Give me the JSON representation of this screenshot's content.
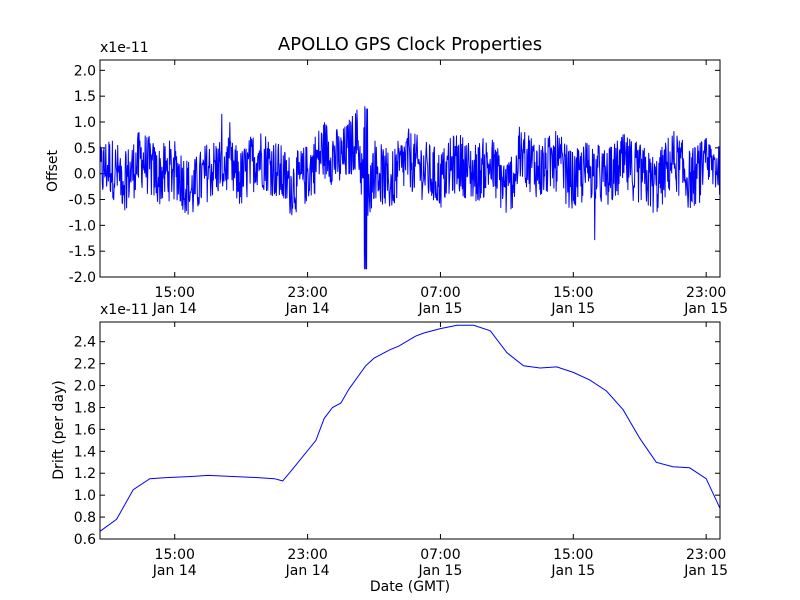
{
  "figure": {
    "title": "APOLLO GPS Clock Properties"
  },
  "colors": {
    "line": "#0000ff",
    "axes": "#000000",
    "background": "#ffffff"
  },
  "chart_data": [
    {
      "type": "line",
      "title": "APOLLO GPS Clock Properties",
      "ylabel": "Offset",
      "xlabel": "",
      "scale_label": "x1e-11",
      "ylim": [
        -2.0,
        2.2
      ],
      "xlim": [
        "Jan 14 10:30",
        "Jan 15 23:50"
      ],
      "grid": false,
      "yticks": [
        {
          "value": -2.0,
          "label": "-2.0"
        },
        {
          "value": -1.5,
          "label": "-1.5"
        },
        {
          "value": -1.0,
          "label": "-1.0"
        },
        {
          "value": -0.5,
          "label": "-0.5"
        },
        {
          "value": 0.0,
          "label": "0.0"
        },
        {
          "value": 0.5,
          "label": "0.5"
        },
        {
          "value": 1.0,
          "label": "1.0"
        },
        {
          "value": 1.5,
          "label": "1.5"
        },
        {
          "value": 2.0,
          "label": "2.0"
        }
      ],
      "xticks": [
        {
          "value": "Jan 14 15:00",
          "time": "15:00",
          "date": "Jan 14"
        },
        {
          "value": "Jan 14 23:00",
          "time": "23:00",
          "date": "Jan 14"
        },
        {
          "value": "Jan 15 07:00",
          "time": "07:00",
          "date": "Jan 15"
        },
        {
          "value": "Jan 15 15:00",
          "time": "15:00",
          "date": "Jan 15"
        },
        {
          "value": "Jan 15 23:00",
          "time": "23:00",
          "date": "Jan 15"
        }
      ],
      "series": [
        {
          "color": "#0000ff",
          "x": [
            "Jan 14 10:30",
            "Jan 14 11:00",
            "Jan 14 12:00",
            "Jan 14 13:00",
            "Jan 14 14:00",
            "Jan 14 15:00",
            "Jan 14 16:00",
            "Jan 14 17:00",
            "Jan 14 18:00",
            "Jan 14 19:00",
            "Jan 14 20:00",
            "Jan 14 21:00",
            "Jan 14 22:00",
            "Jan 14 23:00",
            "Jan 15 00:00",
            "Jan 15 01:00",
            "Jan 15 02:00",
            "Jan 15 02:30",
            "Jan 15 03:00",
            "Jan 15 04:00",
            "Jan 15 05:00",
            "Jan 15 06:00",
            "Jan 15 07:00",
            "Jan 15 08:00",
            "Jan 15 09:00",
            "Jan 15 10:00",
            "Jan 15 11:00",
            "Jan 15 12:00",
            "Jan 15 13:00",
            "Jan 15 14:00",
            "Jan 15 15:00",
            "Jan 15 16:00",
            "Jan 15 17:00",
            "Jan 15 18:00",
            "Jan 15 19:00",
            "Jan 15 20:00",
            "Jan 15 21:00",
            "Jan 15 22:00",
            "Jan 15 23:00",
            "Jan 15 23:50"
          ],
          "values": [
            0.0,
            0.3,
            -0.2,
            0.5,
            -0.1,
            0.2,
            -0.6,
            0.1,
            0.3,
            -0.2,
            0.6,
            0.2,
            -0.4,
            0.0,
            0.8,
            0.4,
            1.2,
            -1.0,
            0.2,
            -0.3,
            0.5,
            0.1,
            -0.2,
            0.4,
            0.0,
            0.3,
            -0.5,
            0.6,
            0.1,
            0.4,
            -0.3,
            0.2,
            -0.2,
            0.3,
            0.0,
            -0.4,
            0.5,
            -0.2,
            0.2,
            0.3
          ]
        }
      ]
    },
    {
      "type": "line",
      "title": "",
      "ylabel": "Drift (per day)",
      "xlabel": "Date (GMT)",
      "scale_label": "x1e-11",
      "ylim": [
        0.6,
        2.58
      ],
      "xlim": [
        "Jan 14 10:30",
        "Jan 15 23:50"
      ],
      "grid": false,
      "yticks": [
        {
          "value": 0.6,
          "label": "0.6"
        },
        {
          "value": 0.8,
          "label": "0.8"
        },
        {
          "value": 1.0,
          "label": "1.0"
        },
        {
          "value": 1.2,
          "label": "1.2"
        },
        {
          "value": 1.4,
          "label": "1.4"
        },
        {
          "value": 1.6,
          "label": "1.6"
        },
        {
          "value": 1.8,
          "label": "1.8"
        },
        {
          "value": 2.0,
          "label": "2.0"
        },
        {
          "value": 2.2,
          "label": "2.2"
        },
        {
          "value": 2.4,
          "label": "2.4"
        }
      ],
      "xticks": [
        {
          "value": "Jan 14 15:00",
          "time": "15:00",
          "date": "Jan 14"
        },
        {
          "value": "Jan 14 23:00",
          "time": "23:00",
          "date": "Jan 14"
        },
        {
          "value": "Jan 15 07:00",
          "time": "07:00",
          "date": "Jan 15"
        },
        {
          "value": "Jan 15 15:00",
          "time": "15:00",
          "date": "Jan 15"
        },
        {
          "value": "Jan 15 23:00",
          "time": "23:00",
          "date": "Jan 15"
        }
      ],
      "series": [
        {
          "color": "#0000ff",
          "x": [
            "Jan 14 10:30",
            "Jan 14 11:30",
            "Jan 14 12:30",
            "Jan 14 13:30",
            "Jan 14 14:30",
            "Jan 14 16:00",
            "Jan 14 17:00",
            "Jan 14 18:30",
            "Jan 14 20:00",
            "Jan 14 21:00",
            "Jan 14 21:30",
            "Jan 14 22:00",
            "Jan 14 23:30",
            "Jan 15 00:00",
            "Jan 15 00:30",
            "Jan 15 01:00",
            "Jan 15 01:30",
            "Jan 15 02:30",
            "Jan 15 03:00",
            "Jan 15 04:00",
            "Jan 15 04:30",
            "Jan 15 05:30",
            "Jan 15 06:00",
            "Jan 15 07:00",
            "Jan 15 08:00",
            "Jan 15 09:00",
            "Jan 15 10:00",
            "Jan 15 11:00",
            "Jan 15 12:00",
            "Jan 15 13:00",
            "Jan 15 14:00",
            "Jan 15 15:00",
            "Jan 15 16:00",
            "Jan 15 17:00",
            "Jan 15 18:00",
            "Jan 15 19:00",
            "Jan 15 20:00",
            "Jan 15 21:00",
            "Jan 15 22:00",
            "Jan 15 23:00",
            "Jan 15 23:50"
          ],
          "values": [
            0.67,
            0.78,
            1.05,
            1.15,
            1.16,
            1.17,
            1.18,
            1.17,
            1.16,
            1.15,
            1.13,
            1.22,
            1.5,
            1.7,
            1.8,
            1.84,
            1.97,
            2.18,
            2.25,
            2.33,
            2.36,
            2.45,
            2.48,
            2.52,
            2.55,
            2.55,
            2.5,
            2.3,
            2.18,
            2.16,
            2.17,
            2.12,
            2.05,
            1.95,
            1.78,
            1.52,
            1.3,
            1.26,
            1.25,
            1.15,
            0.88
          ]
        }
      ]
    }
  ]
}
